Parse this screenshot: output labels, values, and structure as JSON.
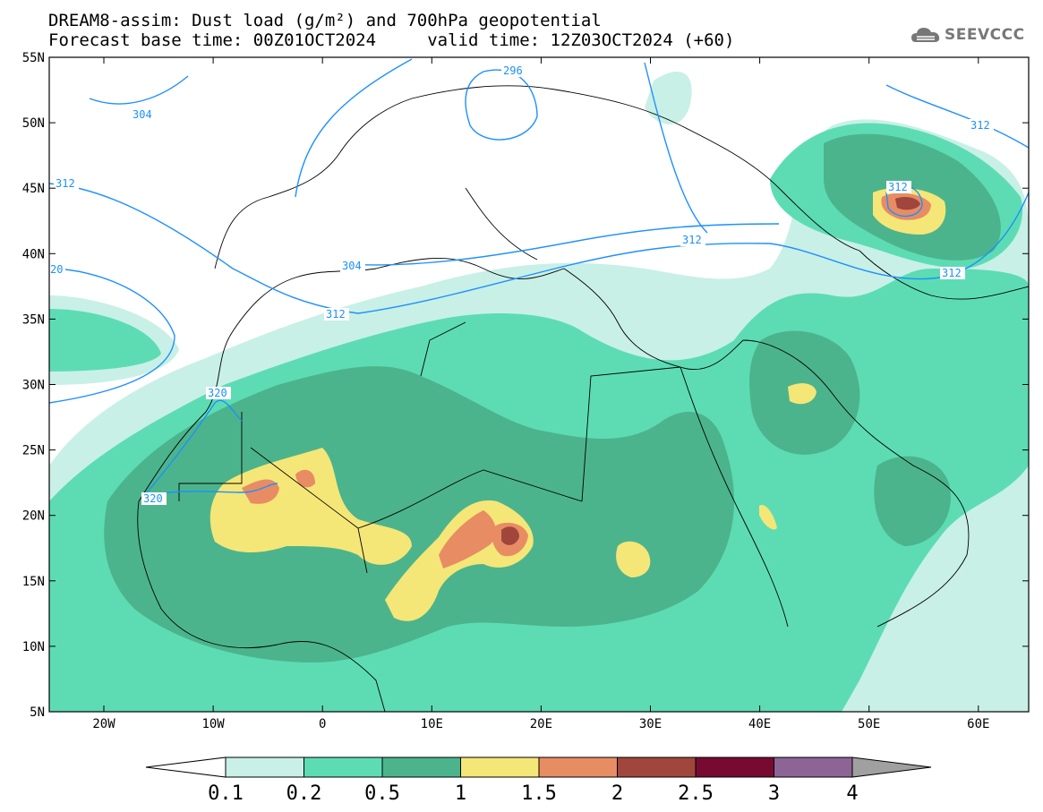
{
  "title_line1": "DREAM8-assim: Dust load (g/m²) and 700hPa geopotential",
  "title_line2": "Forecast base time: 00Z01OCT2024     valid time: 12Z03OCT2024 (+60)",
  "logo_text": "SEEVCCC",
  "axes": {
    "lat_ticks": [
      "55N",
      "50N",
      "45N",
      "40N",
      "35N",
      "30N",
      "25N",
      "20N",
      "15N",
      "10N",
      "5N"
    ],
    "lon_ticks": [
      "20W",
      "10W",
      "0",
      "10E",
      "20E",
      "30E",
      "40E",
      "50E",
      "60E"
    ]
  },
  "contour_labels": [
    "304",
    "296",
    "312",
    "312",
    "304",
    "312",
    "320",
    "312",
    "312",
    "320",
    "20",
    "312"
  ],
  "colorbar": {
    "labels": [
      "0.1",
      "0.2",
      "0.5",
      "1",
      "1.5",
      "2",
      "2.5",
      "3",
      "4"
    ],
    "colors": [
      "#c8f0e6",
      "#5ddcb4",
      "#4cb48c",
      "#f5e678",
      "#e88c64",
      "#a0463c",
      "#780a32",
      "#8c6496"
    ],
    "under_color": "#ffffff",
    "over_color": "#a0a0a0"
  },
  "palette": {
    "dust_01": "#c8f0e6",
    "dust_02": "#5ddcb4",
    "dust_05": "#4cb48c",
    "dust_1": "#f5e678",
    "dust_15": "#e88c64",
    "dust_2": "#a0463c",
    "contour": "#1e90ff"
  }
}
